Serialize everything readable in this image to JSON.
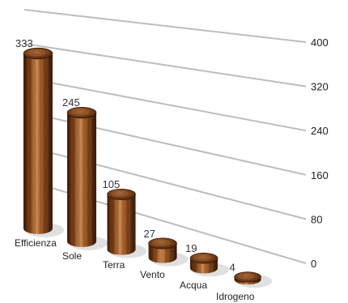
{
  "chart_data": {
    "type": "bar",
    "style": "3d-cylinder-wood",
    "categories": [
      "Efficienza",
      "Sole",
      "Terra",
      "Vento",
      "Acqua",
      "Idrogeno"
    ],
    "values": [
      333,
      245,
      105,
      27,
      19,
      4
    ],
    "ylim": [
      0,
      400
    ],
    "yticks": [
      0,
      80,
      160,
      240,
      320,
      400
    ],
    "title": "",
    "xlabel": "",
    "ylabel": "",
    "grid": true,
    "legend": "none",
    "colors": {
      "bar_dark": "#3a1a06",
      "bar_mid": "#8a4a1e",
      "bar_light": "#c98a52",
      "gridline": "#b9bec2"
    }
  }
}
